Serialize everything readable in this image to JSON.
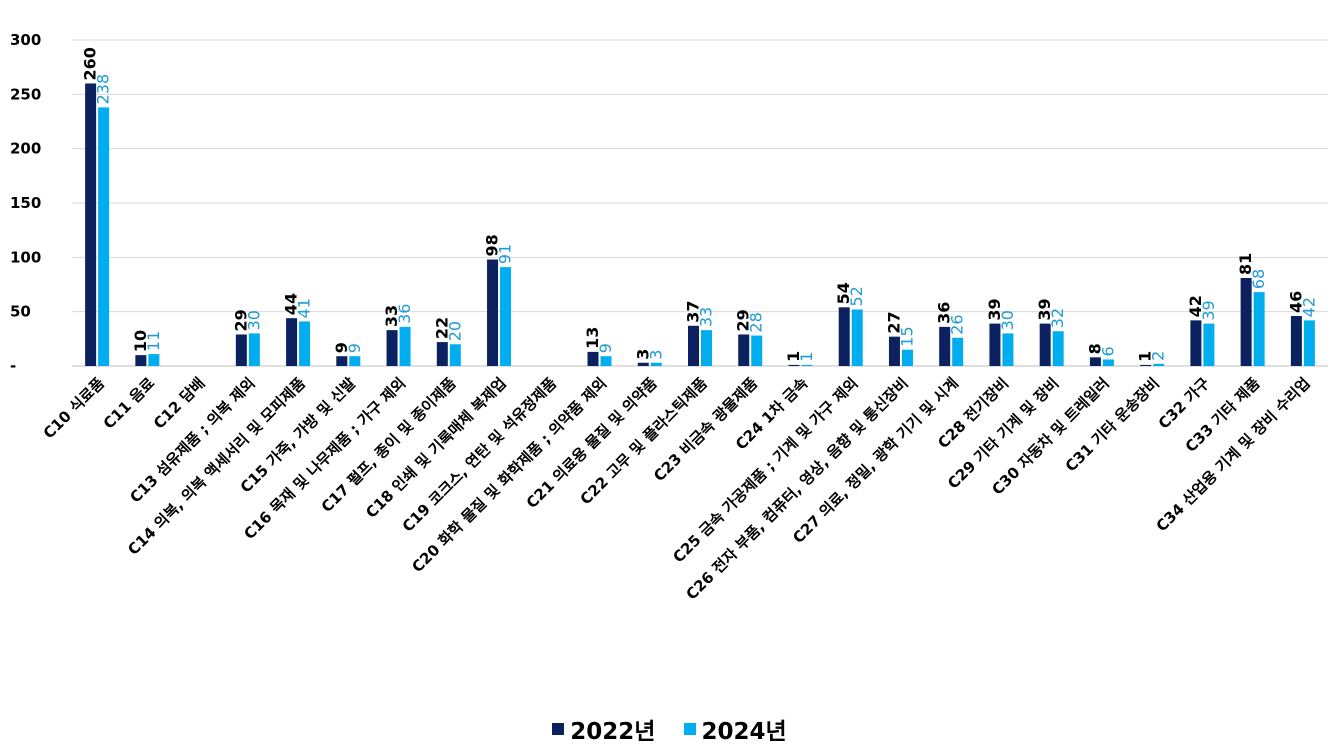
{
  "chart_data": {
    "type": "bar",
    "categories": [
      "C10 식료품",
      "C11 음료",
      "C12 담배",
      "C13 섬유제품 ; 의복 제외",
      "C14 의복, 의복 액세서리 및 모피제품",
      "C15 가죽, 가방 및 신발",
      "C16 목재 및 나무제품 ; 가구 제외",
      "C17 펄프, 종이 및 종이제품",
      "C18 인쇄 및 기록매체 복제업",
      "C19 코크스, 연탄 및 석유정제품",
      "C20 화학 물질 및 화학제품 ; 의약품 제외",
      "C21 의료용 물질 및 의약품",
      "C22 고무 및 플라스틱제품",
      "C23 비금속 광물제품",
      "C24 1차 금속",
      "C25 금속 가공제품 ; 기계 및 가구 제외",
      "C26 전자 부품, 컴퓨터, 영상, 음향 및 통신장비",
      "C27 의료, 정밀, 광학 기기 및 시계",
      "C28 전기장비",
      "C29 기타 기계 및 장비",
      "C30 자동차 및 트레일러",
      "C31 기타 운송장비",
      "C32 가구",
      "C33 기타 제품",
      "C34 산업용 기계 및 장비 수리업"
    ],
    "series": [
      {
        "name": "2022년",
        "color": "#0B2160",
        "values": [
          260,
          10,
          null,
          29,
          44,
          9,
          33,
          22,
          98,
          null,
          13,
          3,
          37,
          29,
          1,
          54,
          27,
          36,
          39,
          39,
          8,
          1,
          42,
          81,
          46
        ]
      },
      {
        "name": "2024년",
        "color": "#00AEEF",
        "values": [
          238,
          11,
          null,
          30,
          41,
          9,
          36,
          20,
          91,
          null,
          9,
          3,
          33,
          28,
          1,
          52,
          15,
          26,
          30,
          32,
          6,
          2,
          39,
          68,
          42
        ]
      }
    ],
    "yticks": [
      "-",
      "50",
      "100",
      "150",
      "200",
      "250",
      "300"
    ],
    "ylim": [
      0,
      300
    ],
    "grid": true,
    "legend_position": "bottom"
  }
}
